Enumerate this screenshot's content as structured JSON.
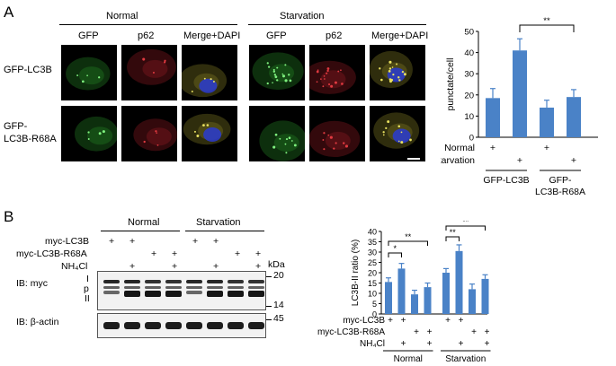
{
  "panel_a": {
    "letter": "A",
    "conditions": [
      "Normal",
      "Starvation"
    ],
    "channels": [
      "GFP",
      "p62",
      "Merge+DAPI"
    ],
    "rows": [
      "GFP-LC3B",
      "GFP-\nLC3B-R68A"
    ],
    "row_labels": {
      "row1": "GFP-LC3B",
      "row2_line1": "GFP-",
      "row2_line2": "LC3B-R68A"
    },
    "colors": {
      "gfp": "#2fa82f",
      "p62": "#b8222a",
      "dapi": "#2a3bd0",
      "merge": "#a8a030"
    }
  },
  "panel_b": {
    "letter": "B",
    "conditions": [
      "Normal",
      "Starvation"
    ],
    "treatments": {
      "myc_lc3b": {
        "label": "myc-LC3B",
        "marks": [
          "+",
          "+",
          "",
          "",
          "+",
          "+",
          "",
          ""
        ]
      },
      "myc_lc3b_r68a": {
        "label": "myc-LC3B-R68A",
        "marks": [
          "",
          "",
          "+",
          "+",
          "",
          "",
          "+",
          "+"
        ]
      },
      "nh4cl": {
        "label": "NH₄Cl",
        "marks": [
          "",
          "+",
          "",
          "+",
          "",
          "+",
          "",
          "+"
        ]
      }
    },
    "kda_label": "kDa",
    "markers": {
      "m20": "20",
      "m14": "14",
      "m45": "45"
    },
    "blots": {
      "myc": "IB: myc",
      "actin": "IB: β-actin"
    },
    "band_labels": {
      "I": "I",
      "p": "p",
      "II": "II"
    }
  },
  "chart_data": [
    {
      "type": "bar",
      "ylabel": "punctate/cell",
      "ylim": [
        0,
        50
      ],
      "yticks": [
        0,
        10,
        20,
        30,
        40,
        50
      ],
      "values": [
        18.5,
        41,
        14,
        19
      ],
      "errors": [
        4.5,
        5.5,
        3.5,
        3.5
      ],
      "color": "#4a82c7",
      "significance": [
        {
          "from": 1,
          "to": 3,
          "label": "**"
        }
      ],
      "rows": [
        {
          "label": "Normal",
          "marks": [
            "+",
            "",
            "+",
            ""
          ]
        },
        {
          "label": "Starvation",
          "marks": [
            "",
            "+",
            "",
            "+"
          ]
        }
      ],
      "groups": [
        {
          "label": "GFP-LC3B",
          "bars": [
            0,
            1
          ]
        },
        {
          "label": "GFP-\nLC3B-R68A",
          "label_lines": [
            "GFP-",
            "LC3B-R68A"
          ],
          "bars": [
            2,
            3
          ]
        }
      ]
    },
    {
      "type": "bar",
      "ylabel": "LC3B-II ratio (%)",
      "ylim": [
        0,
        40
      ],
      "yticks": [
        0,
        5,
        10,
        15,
        20,
        25,
        30,
        35,
        40
      ],
      "values": [
        15.5,
        22,
        9.5,
        13,
        20,
        30.5,
        12,
        17
      ],
      "errors": [
        2,
        2.5,
        2,
        2,
        2,
        3,
        2.5,
        2
      ],
      "color": "#4a82c7",
      "significance": [
        {
          "from": 0,
          "to": 1,
          "label": "*"
        },
        {
          "from": 0,
          "to": 3,
          "label": "**"
        },
        {
          "from": 4,
          "to": 5,
          "label": "**"
        },
        {
          "from": 4,
          "to": 7,
          "label": "**"
        }
      ],
      "rows": [
        {
          "label": "myc-LC3B",
          "marks": [
            "+",
            "+",
            "",
            "",
            "+",
            "+",
            "",
            ""
          ]
        },
        {
          "label": "myc-LC3B-R68A",
          "marks": [
            "",
            "",
            "+",
            "+",
            "",
            "",
            "+",
            "+"
          ]
        },
        {
          "label": "NH₄Cl",
          "marks": [
            "",
            "+",
            "",
            "+",
            "",
            "+",
            "",
            "+"
          ]
        }
      ],
      "groups": [
        {
          "label": "Normal",
          "bars": [
            0,
            1,
            2,
            3
          ]
        },
        {
          "label": "Starvation",
          "bars": [
            4,
            5,
            6,
            7
          ]
        }
      ]
    }
  ]
}
